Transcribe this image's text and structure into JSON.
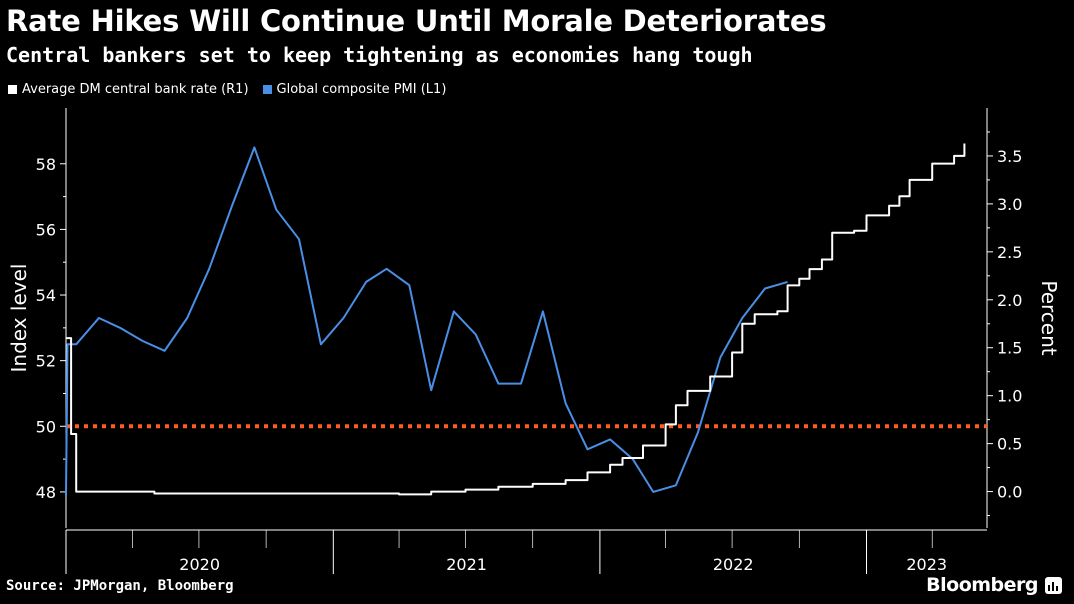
{
  "header": {
    "title": "Rate Hikes Will Continue Until Morale Deteriorates",
    "subtitle": "Central bankers set to keep tightening as economies hang tough"
  },
  "footer": {
    "source": "Source: JPMorgan, Bloomberg",
    "brand": "Bloomberg"
  },
  "colors": {
    "background": "#000000",
    "rate_line": "#ffffff",
    "pmi_line": "#4a8fe6",
    "threshold_line": "#ff5a1f",
    "axis": "#ffffff"
  },
  "chart_data": {
    "type": "line",
    "legend_position": "top-left",
    "grid": false,
    "x_axis": {
      "labels": [
        "2020",
        "2021",
        "2022",
        "2023"
      ],
      "range": [
        "2020-01-01",
        "2023-06-15"
      ]
    },
    "left_axis": {
      "label": "Index level",
      "ticks": [
        48,
        50,
        52,
        54,
        56,
        58
      ],
      "range": [
        46.9,
        59.7
      ]
    },
    "right_axis": {
      "label": "Percent",
      "ticks": [
        "0.0",
        "0.5",
        "1.0",
        "1.5",
        "2.0",
        "2.5",
        "3.0",
        "3.5"
      ],
      "range": [
        -0.38,
        4.0
      ]
    },
    "reference_line": {
      "axis": "left",
      "value": 50,
      "style": "dotted"
    },
    "series": [
      {
        "name": "Average DM central bank rate (R1)",
        "axis": "right",
        "points": [
          [
            "2020-01-01",
            1.6
          ],
          [
            "2020-01-08",
            0.6
          ],
          [
            "2020-01-15",
            0.0
          ],
          [
            "2020-05-01",
            -0.02
          ],
          [
            "2020-10-01",
            -0.02
          ],
          [
            "2021-01-01",
            -0.02
          ],
          [
            "2021-04-01",
            -0.03
          ],
          [
            "2021-05-15",
            0.0
          ],
          [
            "2021-07-01",
            0.02
          ],
          [
            "2021-08-15",
            0.05
          ],
          [
            "2021-10-01",
            0.08
          ],
          [
            "2021-11-15",
            0.12
          ],
          [
            "2021-12-15",
            0.2
          ],
          [
            "2022-01-15",
            0.28
          ],
          [
            "2022-02-01",
            0.35
          ],
          [
            "2022-03-01",
            0.48
          ],
          [
            "2022-04-01",
            0.7
          ],
          [
            "2022-04-15",
            0.9
          ],
          [
            "2022-05-01",
            1.05
          ],
          [
            "2022-06-01",
            1.2
          ],
          [
            "2022-07-01",
            1.45
          ],
          [
            "2022-07-15",
            1.75
          ],
          [
            "2022-08-01",
            1.85
          ],
          [
            "2022-09-01",
            1.88
          ],
          [
            "2022-09-15",
            2.15
          ],
          [
            "2022-10-01",
            2.22
          ],
          [
            "2022-10-15",
            2.32
          ],
          [
            "2022-11-01",
            2.42
          ],
          [
            "2022-11-15",
            2.7
          ],
          [
            "2022-12-15",
            2.72
          ],
          [
            "2023-01-01",
            2.88
          ],
          [
            "2023-02-01",
            2.98
          ],
          [
            "2023-02-15",
            3.08
          ],
          [
            "2023-03-01",
            3.25
          ],
          [
            "2023-04-01",
            3.42
          ],
          [
            "2023-05-01",
            3.5
          ],
          [
            "2023-05-15",
            3.63
          ]
        ]
      },
      {
        "name": "Global composite PMI (L1)",
        "axis": "left",
        "points": [
          [
            "2020-01-01",
            47.9
          ],
          [
            "2020-01-03",
            52.5
          ],
          [
            "2020-01-15",
            52.5
          ],
          [
            "2020-02-15",
            53.3
          ],
          [
            "2020-03-15",
            53.0
          ],
          [
            "2020-04-15",
            52.6
          ],
          [
            "2020-05-15",
            52.3
          ],
          [
            "2020-06-15",
            53.3
          ],
          [
            "2020-07-15",
            54.8
          ],
          [
            "2020-08-15",
            56.7
          ],
          [
            "2020-09-15",
            58.5
          ],
          [
            "2020-10-15",
            56.6
          ],
          [
            "2020-11-15",
            55.7
          ],
          [
            "2020-12-15",
            52.5
          ],
          [
            "2021-01-15",
            53.3
          ],
          [
            "2021-02-15",
            54.4
          ],
          [
            "2021-03-15",
            54.8
          ],
          [
            "2021-04-15",
            54.3
          ],
          [
            "2021-05-15",
            51.1
          ],
          [
            "2021-06-15",
            53.5
          ],
          [
            "2021-07-15",
            52.8
          ],
          [
            "2021-08-15",
            51.3
          ],
          [
            "2021-09-15",
            51.3
          ],
          [
            "2021-10-15",
            53.5
          ],
          [
            "2021-11-15",
            50.7
          ],
          [
            "2021-12-15",
            49.3
          ],
          [
            "2022-01-15",
            49.6
          ],
          [
            "2022-02-15",
            49.0
          ],
          [
            "2022-03-15",
            48.0
          ],
          [
            "2022-04-15",
            48.2
          ],
          [
            "2022-05-15",
            49.8
          ],
          [
            "2022-06-15",
            52.1
          ],
          [
            "2022-07-15",
            53.3
          ],
          [
            "2022-08-15",
            54.2
          ],
          [
            "2022-09-15",
            54.4
          ]
        ]
      }
    ]
  }
}
